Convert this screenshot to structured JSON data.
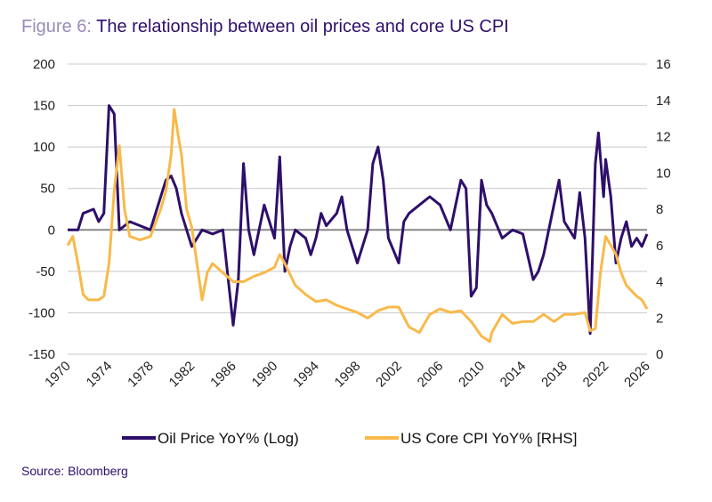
{
  "title": {
    "prefix": "Figure 6:",
    "text": "The relationship between oil prices and core US CPI"
  },
  "source": "Source: Bloomberg",
  "chart_data": {
    "type": "line",
    "title": "The relationship between oil prices and core US CPI",
    "xlim": [
      1970,
      2026
    ],
    "x_ticks": [
      "1970",
      "1974",
      "1978",
      "1982",
      "1986",
      "1990",
      "1994",
      "1998",
      "2002",
      "2006",
      "2010",
      "2014",
      "2018",
      "2022",
      "2026"
    ],
    "y_left": {
      "lim": [
        -150,
        200
      ],
      "ticks": [
        "200",
        "150",
        "100",
        "50",
        "0",
        "-50",
        "-100",
        "-150"
      ]
    },
    "y_right": {
      "lim": [
        0,
        16
      ],
      "ticks": [
        "16",
        "14",
        "12",
        "10",
        "8",
        "6",
        "4",
        "2",
        "0"
      ]
    },
    "grid": "horizontal",
    "legend_position": "bottom",
    "series": [
      {
        "name": "Oil Price YoY% (Log)",
        "axis": "left",
        "color": "#2e0f6a",
        "points": [
          [
            1970,
            0
          ],
          [
            1971,
            0
          ],
          [
            1971.5,
            20
          ],
          [
            1972.5,
            25
          ],
          [
            1973,
            10
          ],
          [
            1973.5,
            20
          ],
          [
            1974,
            150
          ],
          [
            1974.5,
            140
          ],
          [
            1975,
            0
          ],
          [
            1976,
            10
          ],
          [
            1977,
            5
          ],
          [
            1978,
            0
          ],
          [
            1979,
            40
          ],
          [
            1979.5,
            60
          ],
          [
            1980,
            65
          ],
          [
            1980.5,
            50
          ],
          [
            1981,
            20
          ],
          [
            1981.5,
            0
          ],
          [
            1982,
            -20
          ],
          [
            1983,
            0
          ],
          [
            1984,
            -5
          ],
          [
            1985,
            0
          ],
          [
            1986,
            -115
          ],
          [
            1986.5,
            -60
          ],
          [
            1987,
            80
          ],
          [
            1987.5,
            0
          ],
          [
            1988,
            -30
          ],
          [
            1989,
            30
          ],
          [
            1990,
            -10
          ],
          [
            1990.5,
            88
          ],
          [
            1991,
            -50
          ],
          [
            1991.5,
            -20
          ],
          [
            1992,
            0
          ],
          [
            1993,
            -10
          ],
          [
            1993.5,
            -30
          ],
          [
            1994,
            -10
          ],
          [
            1994.5,
            20
          ],
          [
            1995,
            5
          ],
          [
            1996,
            20
          ],
          [
            1996.5,
            40
          ],
          [
            1997,
            0
          ],
          [
            1998,
            -40
          ],
          [
            1999,
            0
          ],
          [
            1999.5,
            80
          ],
          [
            2000,
            100
          ],
          [
            2000.5,
            60
          ],
          [
            2001,
            -10
          ],
          [
            2002,
            -40
          ],
          [
            2002.5,
            10
          ],
          [
            2003,
            20
          ],
          [
            2004,
            30
          ],
          [
            2005,
            40
          ],
          [
            2006,
            30
          ],
          [
            2007,
            0
          ],
          [
            2008,
            60
          ],
          [
            2008.5,
            50
          ],
          [
            2009,
            -80
          ],
          [
            2009.5,
            -70
          ],
          [
            2010,
            60
          ],
          [
            2010.5,
            30
          ],
          [
            2011,
            20
          ],
          [
            2012,
            -10
          ],
          [
            2013,
            0
          ],
          [
            2014,
            -5
          ],
          [
            2015,
            -60
          ],
          [
            2015.5,
            -50
          ],
          [
            2016,
            -30
          ],
          [
            2017,
            30
          ],
          [
            2017.5,
            60
          ],
          [
            2018,
            10
          ],
          [
            2019,
            -10
          ],
          [
            2019.5,
            45
          ],
          [
            2020,
            -10
          ],
          [
            2020.5,
            -125
          ],
          [
            2021,
            80
          ],
          [
            2021.3,
            117
          ],
          [
            2021.8,
            40
          ],
          [
            2022,
            85
          ],
          [
            2022.5,
            40
          ],
          [
            2023,
            -40
          ],
          [
            2023.5,
            -10
          ],
          [
            2024,
            10
          ],
          [
            2024.5,
            -20
          ],
          [
            2025,
            -10
          ],
          [
            2025.5,
            -20
          ],
          [
            2026,
            -5
          ]
        ]
      },
      {
        "name": "US Core CPI YoY% [RHS]",
        "axis": "right",
        "color": "#f9b94a",
        "points": [
          [
            1970,
            6
          ],
          [
            1970.5,
            6.5
          ],
          [
            1971,
            5
          ],
          [
            1971.5,
            3.3
          ],
          [
            1972,
            3
          ],
          [
            1973,
            3
          ],
          [
            1973.5,
            3.2
          ],
          [
            1974,
            5
          ],
          [
            1974.5,
            9
          ],
          [
            1975,
            11.5
          ],
          [
            1975.5,
            8
          ],
          [
            1976,
            6.5
          ],
          [
            1977,
            6.3
          ],
          [
            1978,
            6.5
          ],
          [
            1979,
            8
          ],
          [
            1979.5,
            9
          ],
          [
            1980,
            11
          ],
          [
            1980.3,
            13.5
          ],
          [
            1980.7,
            12
          ],
          [
            1981,
            11
          ],
          [
            1981.5,
            8
          ],
          [
            1982,
            7
          ],
          [
            1982.5,
            5
          ],
          [
            1983,
            3
          ],
          [
            1983.5,
            4.5
          ],
          [
            1984,
            5
          ],
          [
            1985,
            4.5
          ],
          [
            1986,
            4
          ],
          [
            1987,
            4
          ],
          [
            1988,
            4.3
          ],
          [
            1989,
            4.5
          ],
          [
            1990,
            4.8
          ],
          [
            1990.5,
            5.5
          ],
          [
            1991,
            5
          ],
          [
            1992,
            3.8
          ],
          [
            1993,
            3.3
          ],
          [
            1994,
            2.9
          ],
          [
            1995,
            3
          ],
          [
            1996,
            2.7
          ],
          [
            1997,
            2.5
          ],
          [
            1998,
            2.3
          ],
          [
            1999,
            2.0
          ],
          [
            2000,
            2.4
          ],
          [
            2001,
            2.6
          ],
          [
            2002,
            2.6
          ],
          [
            2003,
            1.5
          ],
          [
            2004,
            1.2
          ],
          [
            2005,
            2.2
          ],
          [
            2006,
            2.5
          ],
          [
            2007,
            2.3
          ],
          [
            2008,
            2.4
          ],
          [
            2009,
            1.8
          ],
          [
            2010,
            1.0
          ],
          [
            2010.8,
            0.7
          ],
          [
            2011,
            1.2
          ],
          [
            2012,
            2.2
          ],
          [
            2013,
            1.7
          ],
          [
            2014,
            1.8
          ],
          [
            2015,
            1.8
          ],
          [
            2016,
            2.2
          ],
          [
            2017,
            1.8
          ],
          [
            2018,
            2.2
          ],
          [
            2019,
            2.2
          ],
          [
            2020,
            2.3
          ],
          [
            2020.5,
            1.3
          ],
          [
            2021,
            1.4
          ],
          [
            2021.5,
            4.5
          ],
          [
            2022,
            6.5
          ],
          [
            2022.5,
            6.0
          ],
          [
            2023,
            5.5
          ],
          [
            2023.5,
            4.5
          ],
          [
            2024,
            3.8
          ],
          [
            2025,
            3.2
          ],
          [
            2025.5,
            3.0
          ],
          [
            2026,
            2.5
          ]
        ]
      }
    ]
  }
}
